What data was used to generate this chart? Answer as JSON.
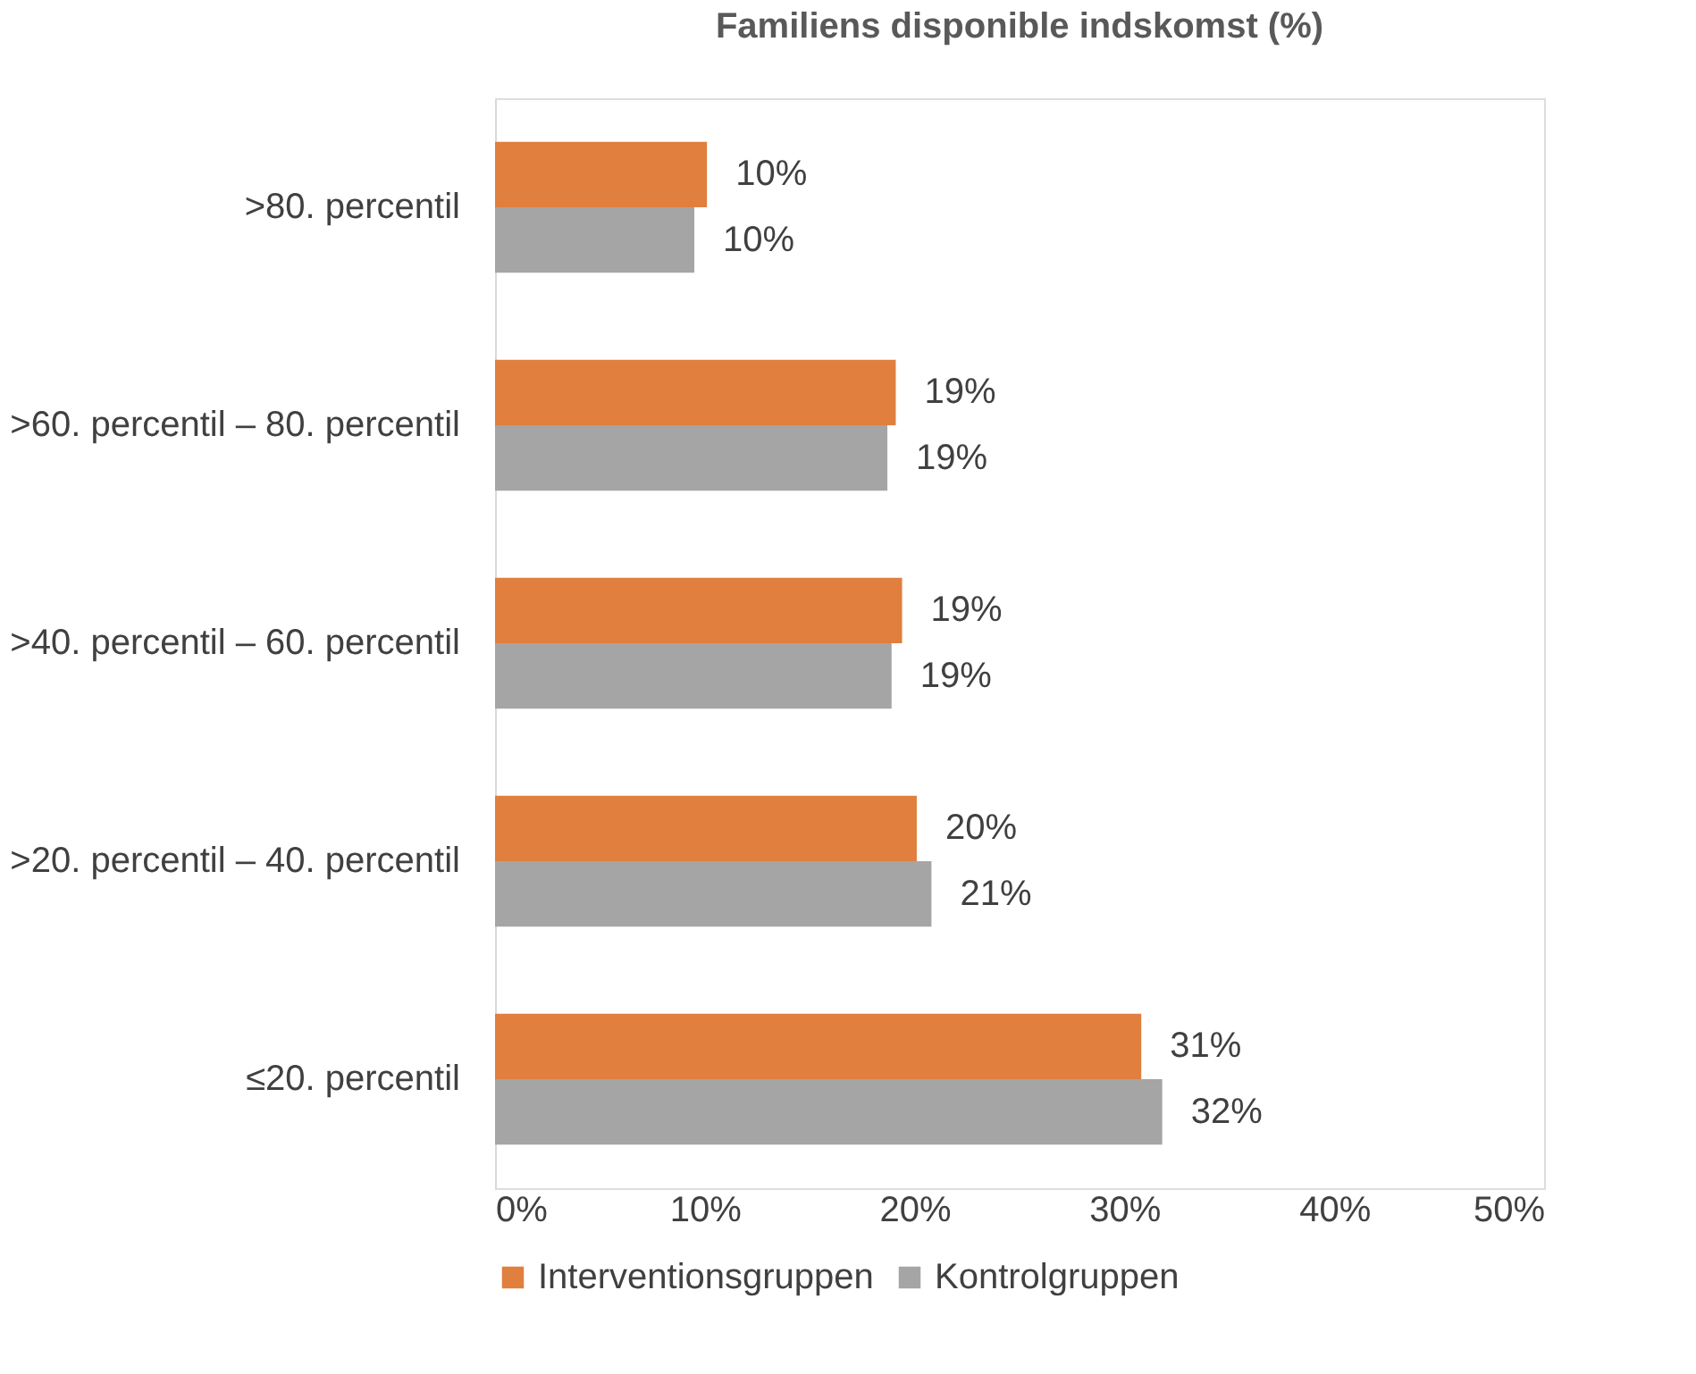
{
  "chart_data": {
    "type": "bar",
    "orientation": "horizontal",
    "title": "Familiens disponible indskomst (%)",
    "categories": [
      ">80. percentil",
      ">60. percentil – 80. percentil",
      ">40. percentil – 60. percentil",
      ">20. percentil – 40. percentil",
      "≤20. percentil"
    ],
    "series": [
      {
        "name": "Interventionsgruppen",
        "color": "#e07f3e",
        "values": [
          10.1,
          19.1,
          19.4,
          20.1,
          30.8
        ],
        "value_labels": [
          "10%",
          "19%",
          "19%",
          "20%",
          "31%"
        ]
      },
      {
        "name": "Kontrolgruppen",
        "color": "#a5a5a5",
        "values": [
          9.5,
          18.7,
          18.9,
          20.8,
          31.8
        ],
        "value_labels": [
          "10%",
          "19%",
          "19%",
          "21%",
          "32%"
        ]
      }
    ],
    "xlim": [
      0,
      50
    ],
    "xticks": [
      {
        "value": 0,
        "label": "0%"
      },
      {
        "value": 10,
        "label": "10%"
      },
      {
        "value": 20,
        "label": "20%"
      },
      {
        "value": 30,
        "label": "30%"
      },
      {
        "value": 40,
        "label": "40%"
      },
      {
        "value": 50,
        "label": "50%"
      }
    ],
    "grid": false,
    "legend": "bottom"
  }
}
